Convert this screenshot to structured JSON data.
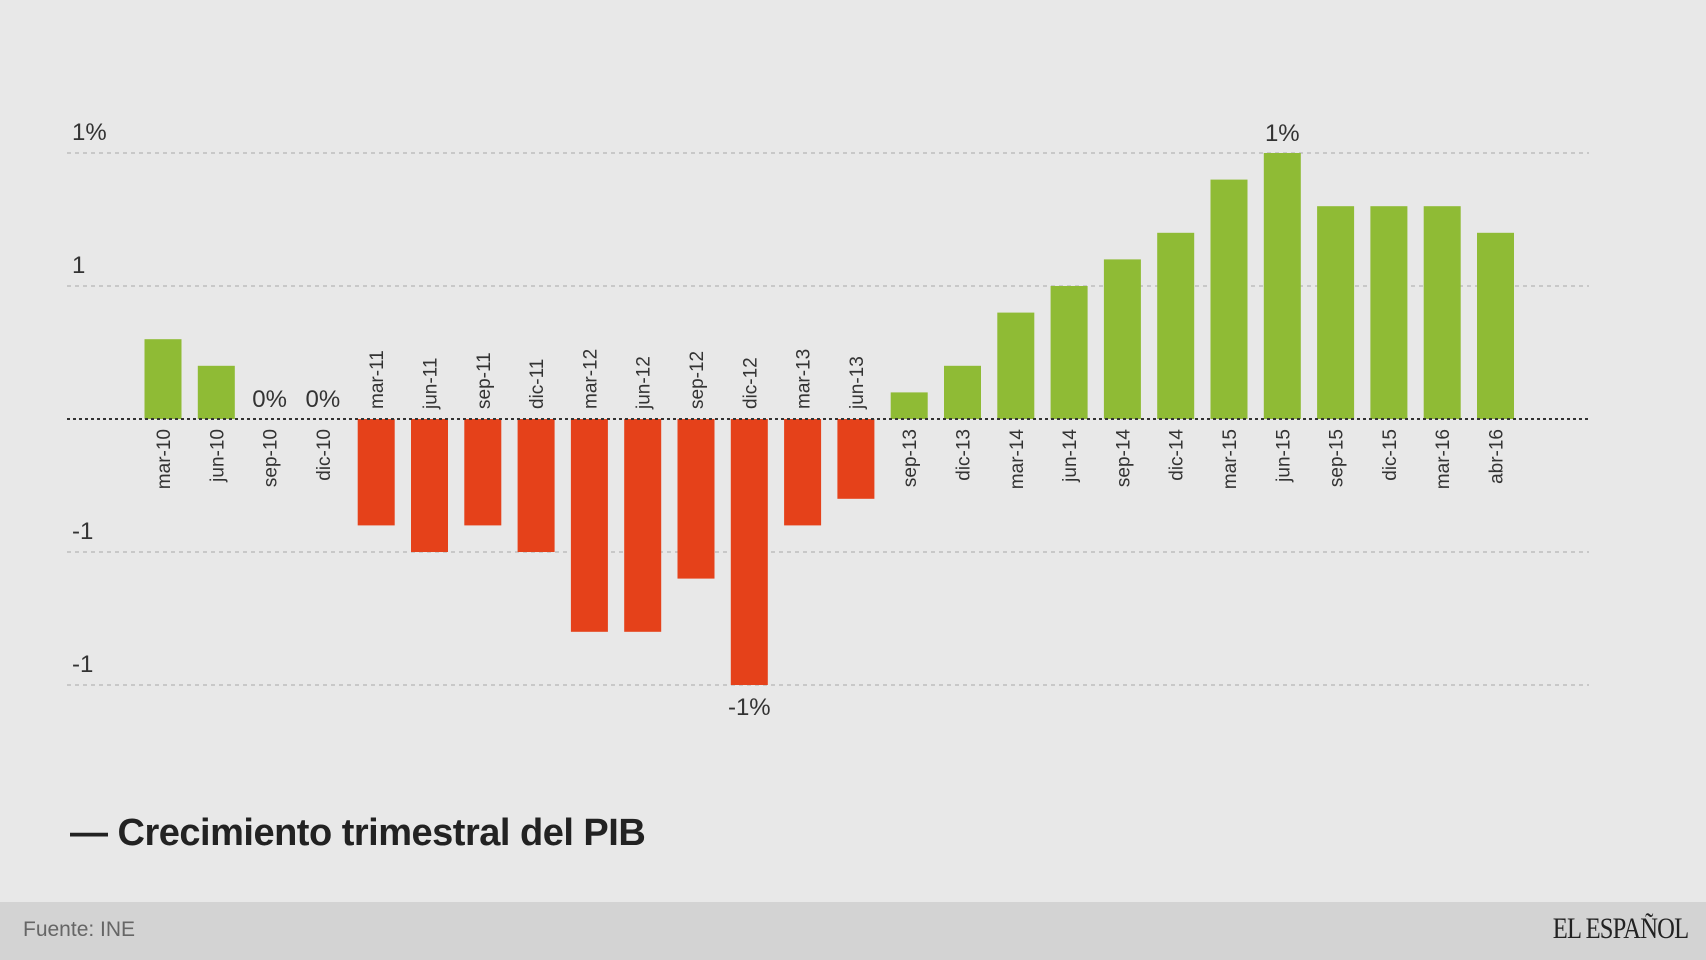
{
  "chart_data": {
    "type": "bar",
    "title": "— Crecimiento trimestral del PIB",
    "categories": [
      "mar-10",
      "jun-10",
      "sep-10",
      "dic-10",
      "mar-11",
      "jun-11",
      "sep-11",
      "dic-11",
      "mar-12",
      "jun-12",
      "sep-12",
      "dic-12",
      "mar-13",
      "jun-13",
      "sep-13",
      "dic-13",
      "mar-14",
      "jun-14",
      "sep-14",
      "dic-14",
      "mar-15",
      "jun-15",
      "sep-15",
      "dic-15",
      "mar-16",
      "abr-16"
    ],
    "values": [
      0.3,
      0.2,
      0,
      0,
      -0.4,
      -0.5,
      -0.4,
      -0.5,
      -0.8,
      -0.8,
      -0.6,
      -1.0,
      -0.4,
      -0.3,
      0.1,
      0.2,
      0.4,
      0.5,
      0.6,
      0.7,
      0.9,
      1.0,
      0.8,
      0.8,
      0.8,
      0.7
    ],
    "ylim": [
      -1,
      1
    ],
    "yticks": [
      {
        "value": 1,
        "label": "1%"
      },
      {
        "value": 0.5,
        "label": "1"
      },
      {
        "value": -0.5,
        "label": "-1"
      },
      {
        "value": -1,
        "label": "-1"
      }
    ],
    "annotations": [
      {
        "category": "sep-10",
        "label": "0%"
      },
      {
        "category": "dic-10",
        "label": "0%"
      },
      {
        "category": "dic-12",
        "label": "-1%"
      },
      {
        "category": "jun-15",
        "label": "1%"
      }
    ],
    "grid": true,
    "colors": {
      "positive": "#8fbb35",
      "negative": "#e5411a",
      "grid": "#bdbdbd",
      "zero": "#333333"
    }
  },
  "footer": {
    "source": "Fuente: INE",
    "logo": "EL ESPAÑOL"
  }
}
